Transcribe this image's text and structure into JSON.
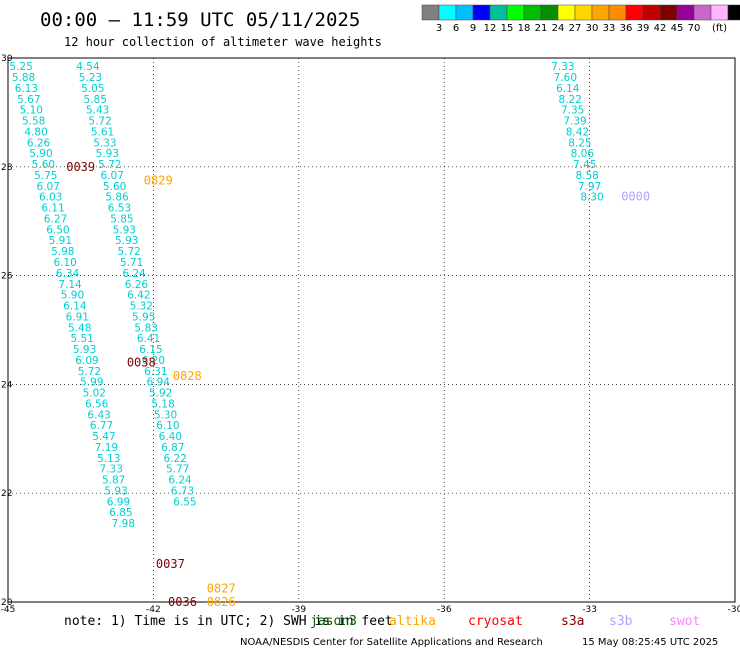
{
  "header": {
    "title": "00:00 – 11:59 UTC 05/11/2025",
    "subtitle": "12 hour collection of altimeter wave heights"
  },
  "colorbar": {
    "colors": [
      "#7f7f7f",
      "#00ffff",
      "#00bfff",
      "#0000ff",
      "#00bf9f",
      "#00ff00",
      "#00bf00",
      "#009000",
      "#ffff00",
      "#ffd700",
      "#ffa500",
      "#ff8c00",
      "#ff0000",
      "#c00000",
      "#800000",
      "#990099",
      "#cc66cc",
      "#ffb6ff",
      "#000000"
    ],
    "labels": [
      "3",
      "6",
      "9",
      "12",
      "15",
      "18",
      "21",
      "24",
      "27",
      "30",
      "33",
      "36",
      "39",
      "42",
      "45",
      "70"
    ],
    "unit": "(ft)"
  },
  "footer": {
    "note": "note:  1) Time is in UTC;  2) SWH is in feet",
    "credit": "NOAA/NESDIS Center for Satellite Applications and Research",
    "timestamp": "15 May 08:25:45 UTC 2025"
  },
  "legend": [
    {
      "name": "jason3",
      "color": "#006400"
    },
    {
      "name": "altika",
      "color": "#ffa500"
    },
    {
      "name": "cryosat",
      "color": "#ff0000"
    },
    {
      "name": "s3a",
      "color": "#800000"
    },
    {
      "name": "s3b",
      "color": "#b0a0ff"
    },
    {
      "name": "swot",
      "color": "#ff80ff"
    }
  ],
  "chart_data": {
    "type": "scatter",
    "title": "00:00 – 11:59 UTC 05/11/2025",
    "xlim": [
      -45,
      -30
    ],
    "ylim": [
      20,
      30
    ],
    "x_ticks": [
      "-45",
      "-42",
      "-39",
      "-36",
      "-33",
      "-30"
    ],
    "y_ticks": [
      "20",
      "22",
      "24",
      "26",
      "28",
      "30"
    ],
    "value_color": "#00ced1",
    "series": [
      {
        "values": [
          {
            "x": -44.73,
            "y": 29.85,
            "v": "5.25"
          },
          {
            "x": -44.68,
            "y": 29.65,
            "v": "5.88"
          },
          {
            "x": -44.62,
            "y": 29.45,
            "v": "6.13"
          },
          {
            "x": -44.57,
            "y": 29.25,
            "v": "5.67"
          },
          {
            "x": -44.52,
            "y": 29.05,
            "v": "5.10"
          },
          {
            "x": -44.47,
            "y": 28.85,
            "v": "5.58"
          },
          {
            "x": -44.42,
            "y": 28.65,
            "v": "4.80"
          },
          {
            "x": -44.37,
            "y": 28.45,
            "v": "6.26"
          },
          {
            "x": -44.32,
            "y": 28.25,
            "v": "5.90"
          },
          {
            "x": -44.27,
            "y": 28.05,
            "v": "5.60"
          },
          {
            "x": -44.22,
            "y": 27.85,
            "v": "5.75"
          },
          {
            "x": -44.17,
            "y": 27.65,
            "v": "6.07"
          },
          {
            "x": -44.12,
            "y": 27.45,
            "v": "6.03"
          },
          {
            "x": -44.07,
            "y": 27.25,
            "v": "6.11"
          },
          {
            "x": -44.02,
            "y": 27.05,
            "v": "6.27"
          },
          {
            "x": -43.97,
            "y": 26.85,
            "v": "6.50"
          },
          {
            "x": -43.92,
            "y": 26.65,
            "v": "5.91"
          },
          {
            "x": -43.87,
            "y": 26.45,
            "v": "5.98"
          },
          {
            "x": -43.82,
            "y": 26.25,
            "v": "6.10"
          },
          {
            "x": -43.77,
            "y": 26.05,
            "v": "6.34"
          },
          {
            "x": -43.72,
            "y": 25.85,
            "v": "7.14"
          },
          {
            "x": -43.67,
            "y": 25.65,
            "v": "5.90"
          },
          {
            "x": -43.62,
            "y": 25.45,
            "v": "6.14"
          },
          {
            "x": -43.57,
            "y": 25.25,
            "v": "6.91"
          },
          {
            "x": -43.52,
            "y": 25.05,
            "v": "5.48"
          },
          {
            "x": -43.47,
            "y": 24.85,
            "v": "5.51"
          },
          {
            "x": -43.42,
            "y": 24.65,
            "v": "5.93"
          },
          {
            "x": -43.37,
            "y": 24.45,
            "v": "6.09"
          },
          {
            "x": -43.32,
            "y": 24.25,
            "v": "5.72"
          },
          {
            "x": -43.27,
            "y": 24.05,
            "v": "5.99"
          },
          {
            "x": -43.22,
            "y": 23.85,
            "v": "5.02"
          },
          {
            "x": -43.17,
            "y": 23.65,
            "v": "6.56"
          },
          {
            "x": -43.12,
            "y": 23.45,
            "v": "6.43"
          },
          {
            "x": -43.07,
            "y": 23.25,
            "v": "6.77"
          },
          {
            "x": -43.02,
            "y": 23.05,
            "v": "5.47"
          },
          {
            "x": -42.97,
            "y": 22.85,
            "v": "7.19"
          },
          {
            "x": -42.92,
            "y": 22.65,
            "v": "5.13"
          },
          {
            "x": -42.87,
            "y": 22.45,
            "v": "7.33"
          },
          {
            "x": -42.82,
            "y": 22.25,
            "v": "5.87"
          },
          {
            "x": -42.77,
            "y": 22.05,
            "v": "5.93"
          },
          {
            "x": -42.72,
            "y": 21.85,
            "v": "6.99"
          },
          {
            "x": -42.67,
            "y": 21.65,
            "v": "6.85"
          },
          {
            "x": -42.62,
            "y": 21.45,
            "v": "7.98"
          }
        ]
      },
      {
        "values": [
          {
            "x": -43.35,
            "y": 29.85,
            "v": "4.54"
          },
          {
            "x": -43.3,
            "y": 29.65,
            "v": "5.23"
          },
          {
            "x": -43.25,
            "y": 29.45,
            "v": "5.05"
          },
          {
            "x": -43.2,
            "y": 29.25,
            "v": "5.85"
          },
          {
            "x": -43.15,
            "y": 29.05,
            "v": "5.43"
          },
          {
            "x": -43.1,
            "y": 28.85,
            "v": "5.72"
          },
          {
            "x": -43.05,
            "y": 28.65,
            "v": "5.61"
          },
          {
            "x": -43.0,
            "y": 28.45,
            "v": "5.33"
          },
          {
            "x": -42.95,
            "y": 28.25,
            "v": "5.93"
          },
          {
            "x": -42.9,
            "y": 28.05,
            "v": "5.72"
          },
          {
            "x": -42.85,
            "y": 27.85,
            "v": "6.07"
          },
          {
            "x": -42.8,
            "y": 27.65,
            "v": "5.60"
          },
          {
            "x": -42.75,
            "y": 27.45,
            "v": "5.86"
          },
          {
            "x": -42.7,
            "y": 27.25,
            "v": "6.53"
          },
          {
            "x": -42.65,
            "y": 27.05,
            "v": "5.85"
          },
          {
            "x": -42.6,
            "y": 26.85,
            "v": "5.93"
          },
          {
            "x": -42.55,
            "y": 26.65,
            "v": "5.93"
          },
          {
            "x": -42.5,
            "y": 26.45,
            "v": "5.72"
          },
          {
            "x": -42.45,
            "y": 26.25,
            "v": "5.71"
          },
          {
            "x": -42.4,
            "y": 26.05,
            "v": "6.24"
          },
          {
            "x": -42.35,
            "y": 25.85,
            "v": "6.26"
          },
          {
            "x": -42.3,
            "y": 25.65,
            "v": "6.42"
          },
          {
            "x": -42.25,
            "y": 25.45,
            "v": "5.32"
          },
          {
            "x": -42.2,
            "y": 25.25,
            "v": "5.95"
          },
          {
            "x": -42.15,
            "y": 25.05,
            "v": "5.83"
          },
          {
            "x": -42.1,
            "y": 24.85,
            "v": "6.41"
          },
          {
            "x": -42.05,
            "y": 24.65,
            "v": "6.15"
          },
          {
            "x": -42.0,
            "y": 24.45,
            "v": "6.20"
          },
          {
            "x": -41.95,
            "y": 24.25,
            "v": "6.31"
          },
          {
            "x": -41.9,
            "y": 24.05,
            "v": "6.94"
          },
          {
            "x": -41.85,
            "y": 23.85,
            "v": "5.92"
          },
          {
            "x": -41.8,
            "y": 23.65,
            "v": "5.18"
          },
          {
            "x": -41.75,
            "y": 23.45,
            "v": "5.30"
          },
          {
            "x": -41.7,
            "y": 23.25,
            "v": "6.10"
          },
          {
            "x": -41.65,
            "y": 23.05,
            "v": "6.40"
          },
          {
            "x": -41.6,
            "y": 22.85,
            "v": "6.87"
          },
          {
            "x": -41.55,
            "y": 22.65,
            "v": "6.22"
          },
          {
            "x": -41.5,
            "y": 22.45,
            "v": "5.77"
          },
          {
            "x": -41.45,
            "y": 22.25,
            "v": "6.24"
          },
          {
            "x": -41.4,
            "y": 22.05,
            "v": "6.73"
          },
          {
            "x": -41.35,
            "y": 21.85,
            "v": "6.55"
          }
        ]
      },
      {
        "values": [
          {
            "x": -33.55,
            "y": 29.85,
            "v": "7.33"
          },
          {
            "x": -33.5,
            "y": 29.65,
            "v": "7.60"
          },
          {
            "x": -33.45,
            "y": 29.45,
            "v": "6.14"
          },
          {
            "x": -33.4,
            "y": 29.25,
            "v": "8.22"
          },
          {
            "x": -33.35,
            "y": 29.05,
            "v": "7.35"
          },
          {
            "x": -33.3,
            "y": 28.85,
            "v": "7.39"
          },
          {
            "x": -33.25,
            "y": 28.65,
            "v": "8.42"
          },
          {
            "x": -33.2,
            "y": 28.45,
            "v": "8.25"
          },
          {
            "x": -33.15,
            "y": 28.25,
            "v": "8.06"
          },
          {
            "x": -33.1,
            "y": 28.05,
            "v": "7.45"
          },
          {
            "x": -33.05,
            "y": 27.85,
            "v": "8.58"
          },
          {
            "x": -33.0,
            "y": 27.65,
            "v": "7.97"
          },
          {
            "x": -32.95,
            "y": 27.45,
            "v": "8.30"
          }
        ]
      }
    ],
    "time_labels": [
      {
        "x": -43.5,
        "y": 28.0,
        "t": "0039",
        "color": "#800000"
      },
      {
        "x": -41.9,
        "y": 27.75,
        "t": "0829",
        "color": "#ffa500"
      },
      {
        "x": -32.05,
        "y": 27.45,
        "t": "0000",
        "color": "#b0a0ff"
      },
      {
        "x": -42.25,
        "y": 24.4,
        "t": "0038",
        "color": "#800000"
      },
      {
        "x": -41.3,
        "y": 24.15,
        "t": "0828",
        "color": "#ffa500"
      },
      {
        "x": -41.65,
        "y": 20.7,
        "t": "0037",
        "color": "#800000"
      },
      {
        "x": -40.6,
        "y": 20.25,
        "t": "0827",
        "color": "#ffa500"
      },
      {
        "x": -41.4,
        "y": 20.0,
        "t": "0036",
        "color": "#800000"
      },
      {
        "x": -40.6,
        "y": 20.0,
        "t": "0826",
        "color": "#ffa500"
      }
    ]
  }
}
